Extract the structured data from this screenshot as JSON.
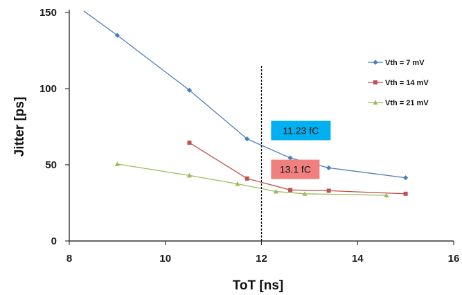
{
  "chart_data": {
    "type": "line",
    "xlabel": "ToT [ns]",
    "ylabel": "Jitter [ps]",
    "xlim": [
      8,
      16
    ],
    "ylim": [
      0,
      150
    ],
    "xticks": [
      "8",
      "10",
      "12",
      "14",
      "16"
    ],
    "yticks": [
      "0",
      "50",
      "100",
      "150"
    ],
    "grid": false,
    "legend_position": "right",
    "series": [
      {
        "name": "Vth = 7 mV",
        "color": "#4a7ebb",
        "marker": "diamond",
        "points": [
          [
            8.3,
            151
          ],
          [
            9.0,
            135
          ],
          [
            10.5,
            99
          ],
          [
            11.7,
            67
          ],
          [
            12.6,
            54.5
          ],
          [
            13.4,
            48
          ],
          [
            15.0,
            41.5
          ]
        ]
      },
      {
        "name": "Vth = 14 mV",
        "color": "#c0504d",
        "marker": "square",
        "points": [
          [
            10.5,
            64.5
          ],
          [
            11.7,
            41
          ],
          [
            12.6,
            33.5
          ],
          [
            13.4,
            33
          ],
          [
            15.0,
            31
          ]
        ]
      },
      {
        "name": "Vth = 21 mV",
        "color": "#9bbb59",
        "marker": "triangle",
        "points": [
          [
            9.0,
            50.5
          ],
          [
            10.5,
            43
          ],
          [
            11.5,
            37.5
          ],
          [
            12.3,
            32.5
          ],
          [
            12.9,
            31
          ],
          [
            14.6,
            30
          ]
        ]
      }
    ],
    "reference_line": {
      "x": 12.0,
      "style": "dashed",
      "color": "#000000"
    },
    "annotations": [
      {
        "text": "11.23 fC",
        "background": "#00b0f0",
        "x": 12.2,
        "y": 72.5
      },
      {
        "text": "13.1 fC",
        "background": "#f08080",
        "x": 12.2,
        "y": 47
      }
    ]
  }
}
